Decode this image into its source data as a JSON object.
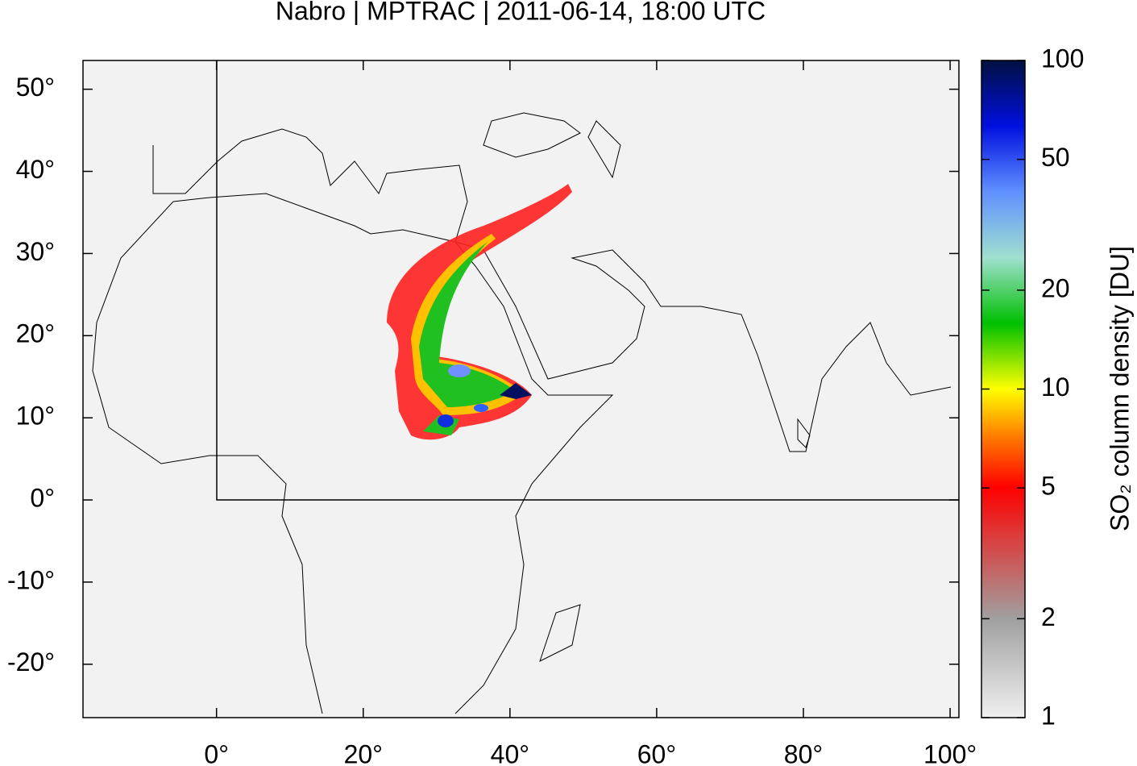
{
  "chart_data": {
    "type": "map",
    "title": "Nabro | MPTRAC | 2011-06-14, 18:00 UTC",
    "xlim": [
      -18.2,
      101.2
    ],
    "ylim": [
      -26.5,
      53.5
    ],
    "xticks": [
      {
        "value": 0,
        "label": "0°"
      },
      {
        "value": 20,
        "label": "20°"
      },
      {
        "value": 40,
        "label": "40°"
      },
      {
        "value": 60,
        "label": "60°"
      },
      {
        "value": 80,
        "label": "80°"
      },
      {
        "value": 100,
        "label": "100°"
      }
    ],
    "yticks": [
      {
        "value": 50,
        "label": "50°"
      },
      {
        "value": 40,
        "label": "40°"
      },
      {
        "value": 30,
        "label": "30°"
      },
      {
        "value": 20,
        "label": "20°"
      },
      {
        "value": 10,
        "label": "10°"
      },
      {
        "value": 0,
        "label": "0°"
      },
      {
        "value": -10,
        "label": "-10°"
      },
      {
        "value": -20,
        "label": "-20°"
      }
    ],
    "colorbar": {
      "label": "SO₂ column density [DU]",
      "lim": [
        1,
        100
      ],
      "log": true,
      "ticks": [
        1,
        2,
        5,
        10,
        20,
        50,
        100
      ]
    }
  }
}
